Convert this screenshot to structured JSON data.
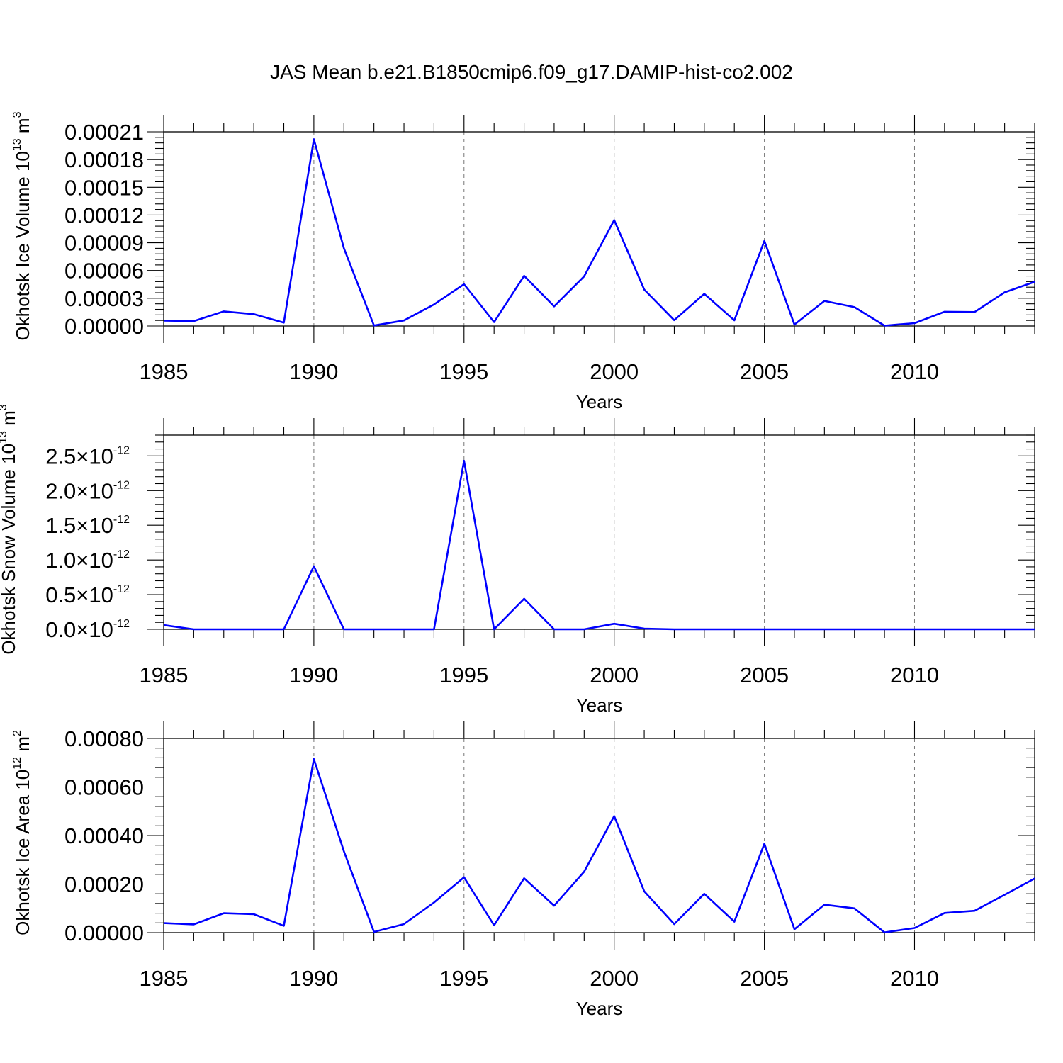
{
  "figure": {
    "title": "JAS Mean b.e21.B1850cmip6.f09_g17.DAMIP-hist-co2.002"
  },
  "colors": {
    "series": "#0000ff",
    "axis": "#000000",
    "grid": "#777777"
  },
  "chart_data": [
    {
      "type": "line",
      "name": "ice-volume",
      "title": "",
      "xlabel": "Years",
      "ylabel": "Okhotsk Ice Volume 10",
      "ylabel_exp": "13",
      "ylabel_unit": "m",
      "ylabel_unit_exp": "3",
      "xlim": [
        1985,
        2014
      ],
      "ylim": [
        0,
        0.00021
      ],
      "xticks": [
        1985,
        1990,
        1995,
        2000,
        2005,
        2010
      ],
      "xtick_labels": [
        "1985",
        "1990",
        "1995",
        "2000",
        "2005",
        "2010"
      ],
      "yticks": [
        0,
        3e-05,
        6e-05,
        9e-05,
        0.00012,
        0.00015,
        0.00018,
        0.00021
      ],
      "ytick_labels": [
        "0.00000",
        "0.00003",
        "0.00006",
        "0.00009",
        "0.00012",
        "0.00015",
        "0.00018",
        "0.00021"
      ],
      "ytick_exp": [],
      "x": [
        1985,
        1986,
        1987,
        1988,
        1989,
        1990,
        1991,
        1992,
        1993,
        1994,
        1995,
        1996,
        1997,
        1998,
        1999,
        2000,
        2001,
        2002,
        2003,
        2004,
        2005,
        2006,
        2007,
        2008,
        2009,
        2010,
        2011,
        2012,
        2013,
        2014
      ],
      "values": [
        5.8e-06,
        5.3e-06,
        1.58e-05,
        1.28e-05,
        3.6e-06,
        0.000202,
        8.4e-05,
        5e-07,
        6e-06,
        2.33e-05,
        4.52e-05,
        4.2e-06,
        5.43e-05,
        2.12e-05,
        5.37e-05,
        0.0001145,
        3.94e-05,
        6.3e-06,
        3.48e-05,
        6.1e-06,
        9.2e-05,
        1.5e-06,
        2.71e-05,
        2.04e-05,
        4e-07,
        3.1e-06,
        1.54e-05,
        1.51e-05,
        3.64e-05,
        4.78e-05
      ]
    },
    {
      "type": "line",
      "name": "snow-volume",
      "title": "",
      "xlabel": "Years",
      "ylabel": "Okhotsk Snow Volume 10",
      "ylabel_exp": "13",
      "ylabel_unit": "m",
      "ylabel_unit_exp": "3",
      "xlim": [
        1985,
        2014
      ],
      "ylim": [
        0,
        2.8
      ],
      "xticks": [
        1985,
        1990,
        1995,
        2000,
        2005,
        2010
      ],
      "xtick_labels": [
        "1985",
        "1990",
        "1995",
        "2000",
        "2005",
        "2010"
      ],
      "yticks": [
        0,
        0.5,
        1.0,
        1.5,
        2.0,
        2.5
      ],
      "ytick_labels": [
        "0.0×10",
        "0.5×10",
        "1.0×10",
        "1.5×10",
        "2.0×10",
        "2.5×10"
      ],
      "ytick_exp": [
        "-12",
        "-12",
        "-12",
        "-12",
        "-12",
        "-12"
      ],
      "value_scale": "×10^-12",
      "x": [
        1985,
        1986,
        1987,
        1988,
        1989,
        1990,
        1991,
        1992,
        1993,
        1994,
        1995,
        1996,
        1997,
        1998,
        1999,
        2000,
        2001,
        2002,
        2003,
        2004,
        2005,
        2006,
        2007,
        2008,
        2009,
        2010,
        2011,
        2012,
        2013,
        2014
      ],
      "values": [
        0.06,
        0.0,
        0.0,
        0.0,
        0.0,
        0.91,
        0.0,
        0.0,
        0.0,
        0.0,
        2.43,
        0.0,
        0.44,
        0.0,
        0.0,
        0.08,
        0.01,
        0.0,
        0.0,
        0.0,
        0.0,
        0.0,
        0.0,
        0.0,
        0.0,
        0.0,
        0.0,
        0.0,
        0.0,
        0.0
      ]
    },
    {
      "type": "line",
      "name": "ice-area",
      "title": "",
      "xlabel": "Years",
      "ylabel": "Okhotsk Ice Area 10",
      "ylabel_exp": "12",
      "ylabel_unit": "m",
      "ylabel_unit_exp": "2",
      "xlim": [
        1985,
        2014
      ],
      "ylim": [
        0,
        0.0008
      ],
      "xticks": [
        1985,
        1990,
        1995,
        2000,
        2005,
        2010
      ],
      "xtick_labels": [
        "1985",
        "1990",
        "1995",
        "2000",
        "2005",
        "2010"
      ],
      "yticks": [
        0,
        0.0002,
        0.0004,
        0.0006,
        0.0008
      ],
      "ytick_labels": [
        "0.00000",
        "0.00020",
        "0.00040",
        "0.00060",
        "0.00080"
      ],
      "ytick_exp": [],
      "x": [
        1985,
        1986,
        1987,
        1988,
        1989,
        1990,
        1991,
        1992,
        1993,
        1994,
        1995,
        1996,
        1997,
        1998,
        1999,
        2000,
        2001,
        2002,
        2003,
        2004,
        2005,
        2006,
        2007,
        2008,
        2009,
        2010,
        2011,
        2012,
        2013,
        2014
      ],
      "values": [
        3.9e-05,
        3.4e-05,
        8e-05,
        7.6e-05,
        2.8e-05,
        0.000715,
        0.000335,
        3e-06,
        3.5e-05,
        0.000124,
        0.000228,
        3e-05,
        0.000224,
        0.000111,
        0.000251,
        0.00048,
        0.00017,
        3.5e-05,
        0.00016,
        4.5e-05,
        0.000366,
        1.4e-05,
        0.000115,
        0.0001,
        1e-06,
        1.9e-05,
        8.1e-05,
        9e-05,
        0.000156,
        0.000223
      ]
    }
  ]
}
